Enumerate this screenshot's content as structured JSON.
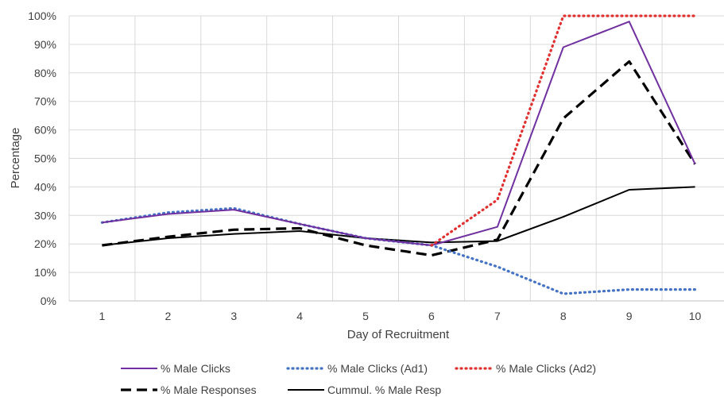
{
  "chart_data": {
    "type": "line",
    "title": "",
    "xlabel": "Day of Recruitment",
    "ylabel": "Percentage",
    "categories": [
      "1",
      "2",
      "3",
      "4",
      "5",
      "6",
      "7",
      "8",
      "9",
      "10"
    ],
    "ylim": [
      0,
      100
    ],
    "yticks": [
      "0%",
      "10%",
      "20%",
      "30%",
      "40%",
      "50%",
      "60%",
      "70%",
      "80%",
      "90%",
      "100%"
    ],
    "grid": true,
    "legend_position": "bottom",
    "series": [
      {
        "name": "% Male Clicks",
        "color": "#7030a0",
        "style": "solid",
        "values": [
          27.5,
          30.5,
          32,
          27,
          22,
          19.5,
          26,
          89,
          98,
          48
        ]
      },
      {
        "name": "% Male Clicks (Ad1)",
        "color": "#4472c4",
        "style": "dotted",
        "values": [
          27.5,
          31,
          32.5,
          27,
          22,
          19.5,
          12,
          2.5,
          4,
          4
        ]
      },
      {
        "name": "% Male Clicks (Ad2)",
        "color": "#e03030",
        "style": "dotted",
        "values": [
          null,
          null,
          null,
          null,
          null,
          19.5,
          35.5,
          100,
          100,
          100
        ]
      },
      {
        "name": "% Male Responses",
        "color": "#000000",
        "style": "dashed",
        "values": [
          19.5,
          22.5,
          25,
          25.5,
          19.5,
          16,
          21.5,
          64,
          84,
          48
        ]
      },
      {
        "name": "Cummul. % Male Resp",
        "color": "#000000",
        "style": "solid",
        "values": [
          19.5,
          22,
          23.5,
          24.5,
          22,
          20.5,
          21,
          29.5,
          39,
          40
        ]
      }
    ]
  }
}
